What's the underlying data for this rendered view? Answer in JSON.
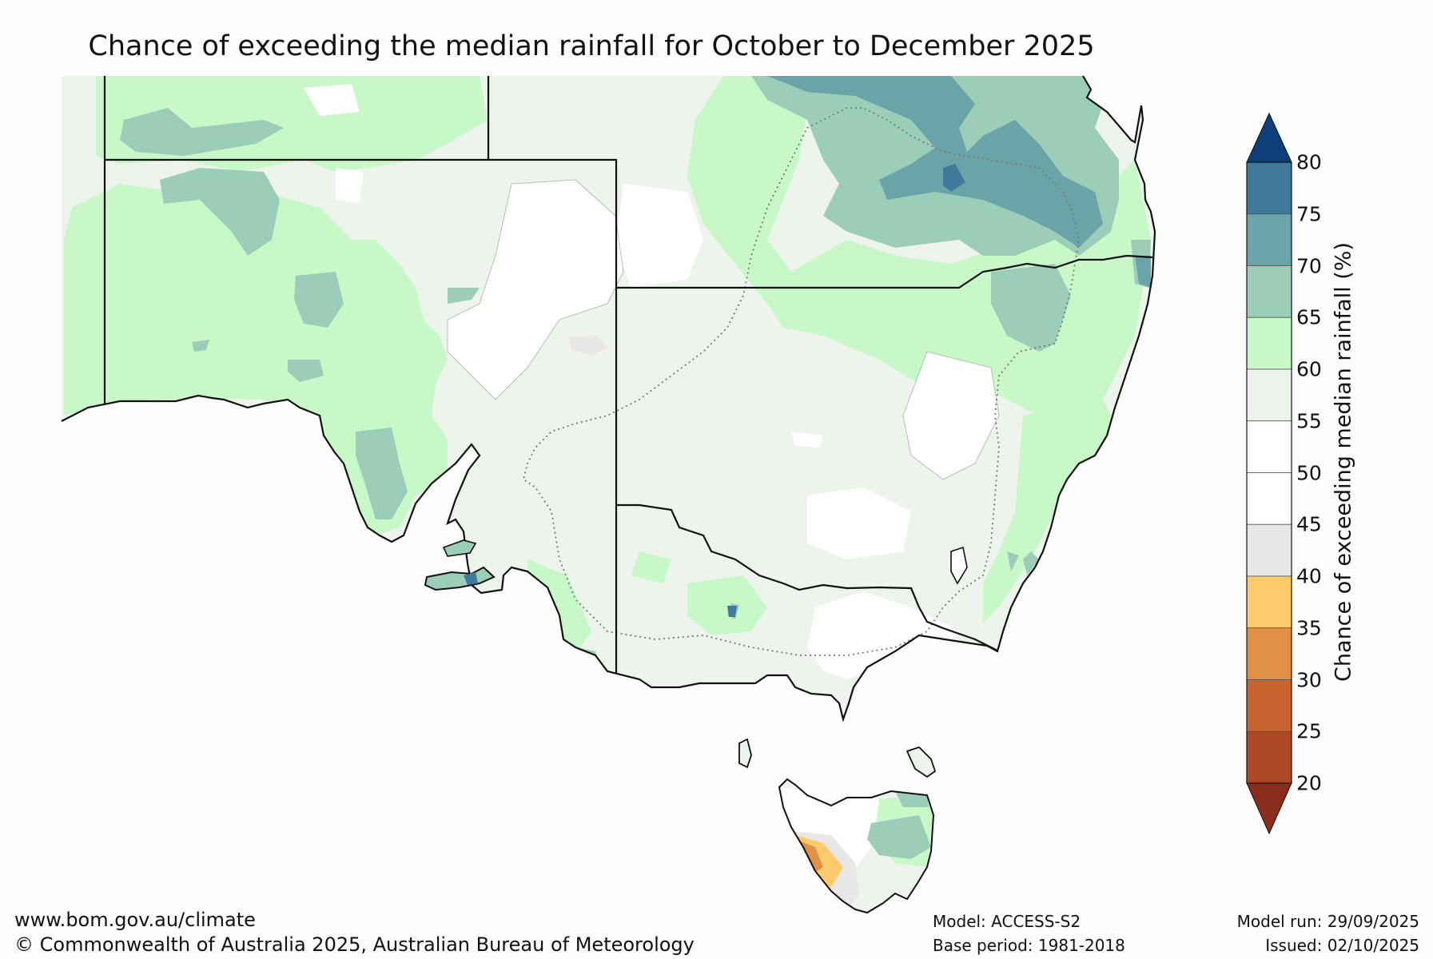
{
  "title": "Chance of exceeding the median rainfall for October to December 2025",
  "colorbar": {
    "label": "Chance of exceeding median rainfall (%)",
    "ticks": [
      "80",
      "75",
      "70",
      "65",
      "60",
      "55",
      "50",
      "45",
      "40",
      "35",
      "30",
      "25",
      "20"
    ],
    "bands": [
      {
        "range": [
          75,
          80
        ],
        "color": "#3f7a9c"
      },
      {
        "range": [
          70,
          75
        ],
        "color": "#6aa4a8"
      },
      {
        "range": [
          65,
          70
        ],
        "color": "#9ccdb8"
      },
      {
        "range": [
          60,
          65
        ],
        "color": "#c8f7c8"
      },
      {
        "range": [
          55,
          60
        ],
        "color": "#ecf4ec"
      },
      {
        "range": [
          50,
          55
        ],
        "color": "#ffffff"
      },
      {
        "range": [
          45,
          50
        ],
        "color": "#ffffff"
      },
      {
        "range": [
          40,
          45
        ],
        "color": "#e8e7e5"
      },
      {
        "range": [
          35,
          40
        ],
        "color": "#fdcb6c"
      },
      {
        "range": [
          30,
          35
        ],
        "color": "#e09146"
      },
      {
        "range": [
          25,
          30
        ],
        "color": "#c8642f"
      },
      {
        "range": [
          20,
          25
        ],
        "color": "#ad4825"
      }
    ],
    "over_color": "#0d3f7a",
    "under_color": "#8a2d1c"
  },
  "footer": {
    "url": "www.bom.gov.au/climate",
    "copyright": "© Commonwealth of Australia 2025, Australian Bureau of Meteorology",
    "model": "Model: ACCESS-S2",
    "base_period": "Base period: 1981-2018",
    "model_run": "Model run: 29/09/2025",
    "issued": "Issued: 02/10/2025"
  }
}
